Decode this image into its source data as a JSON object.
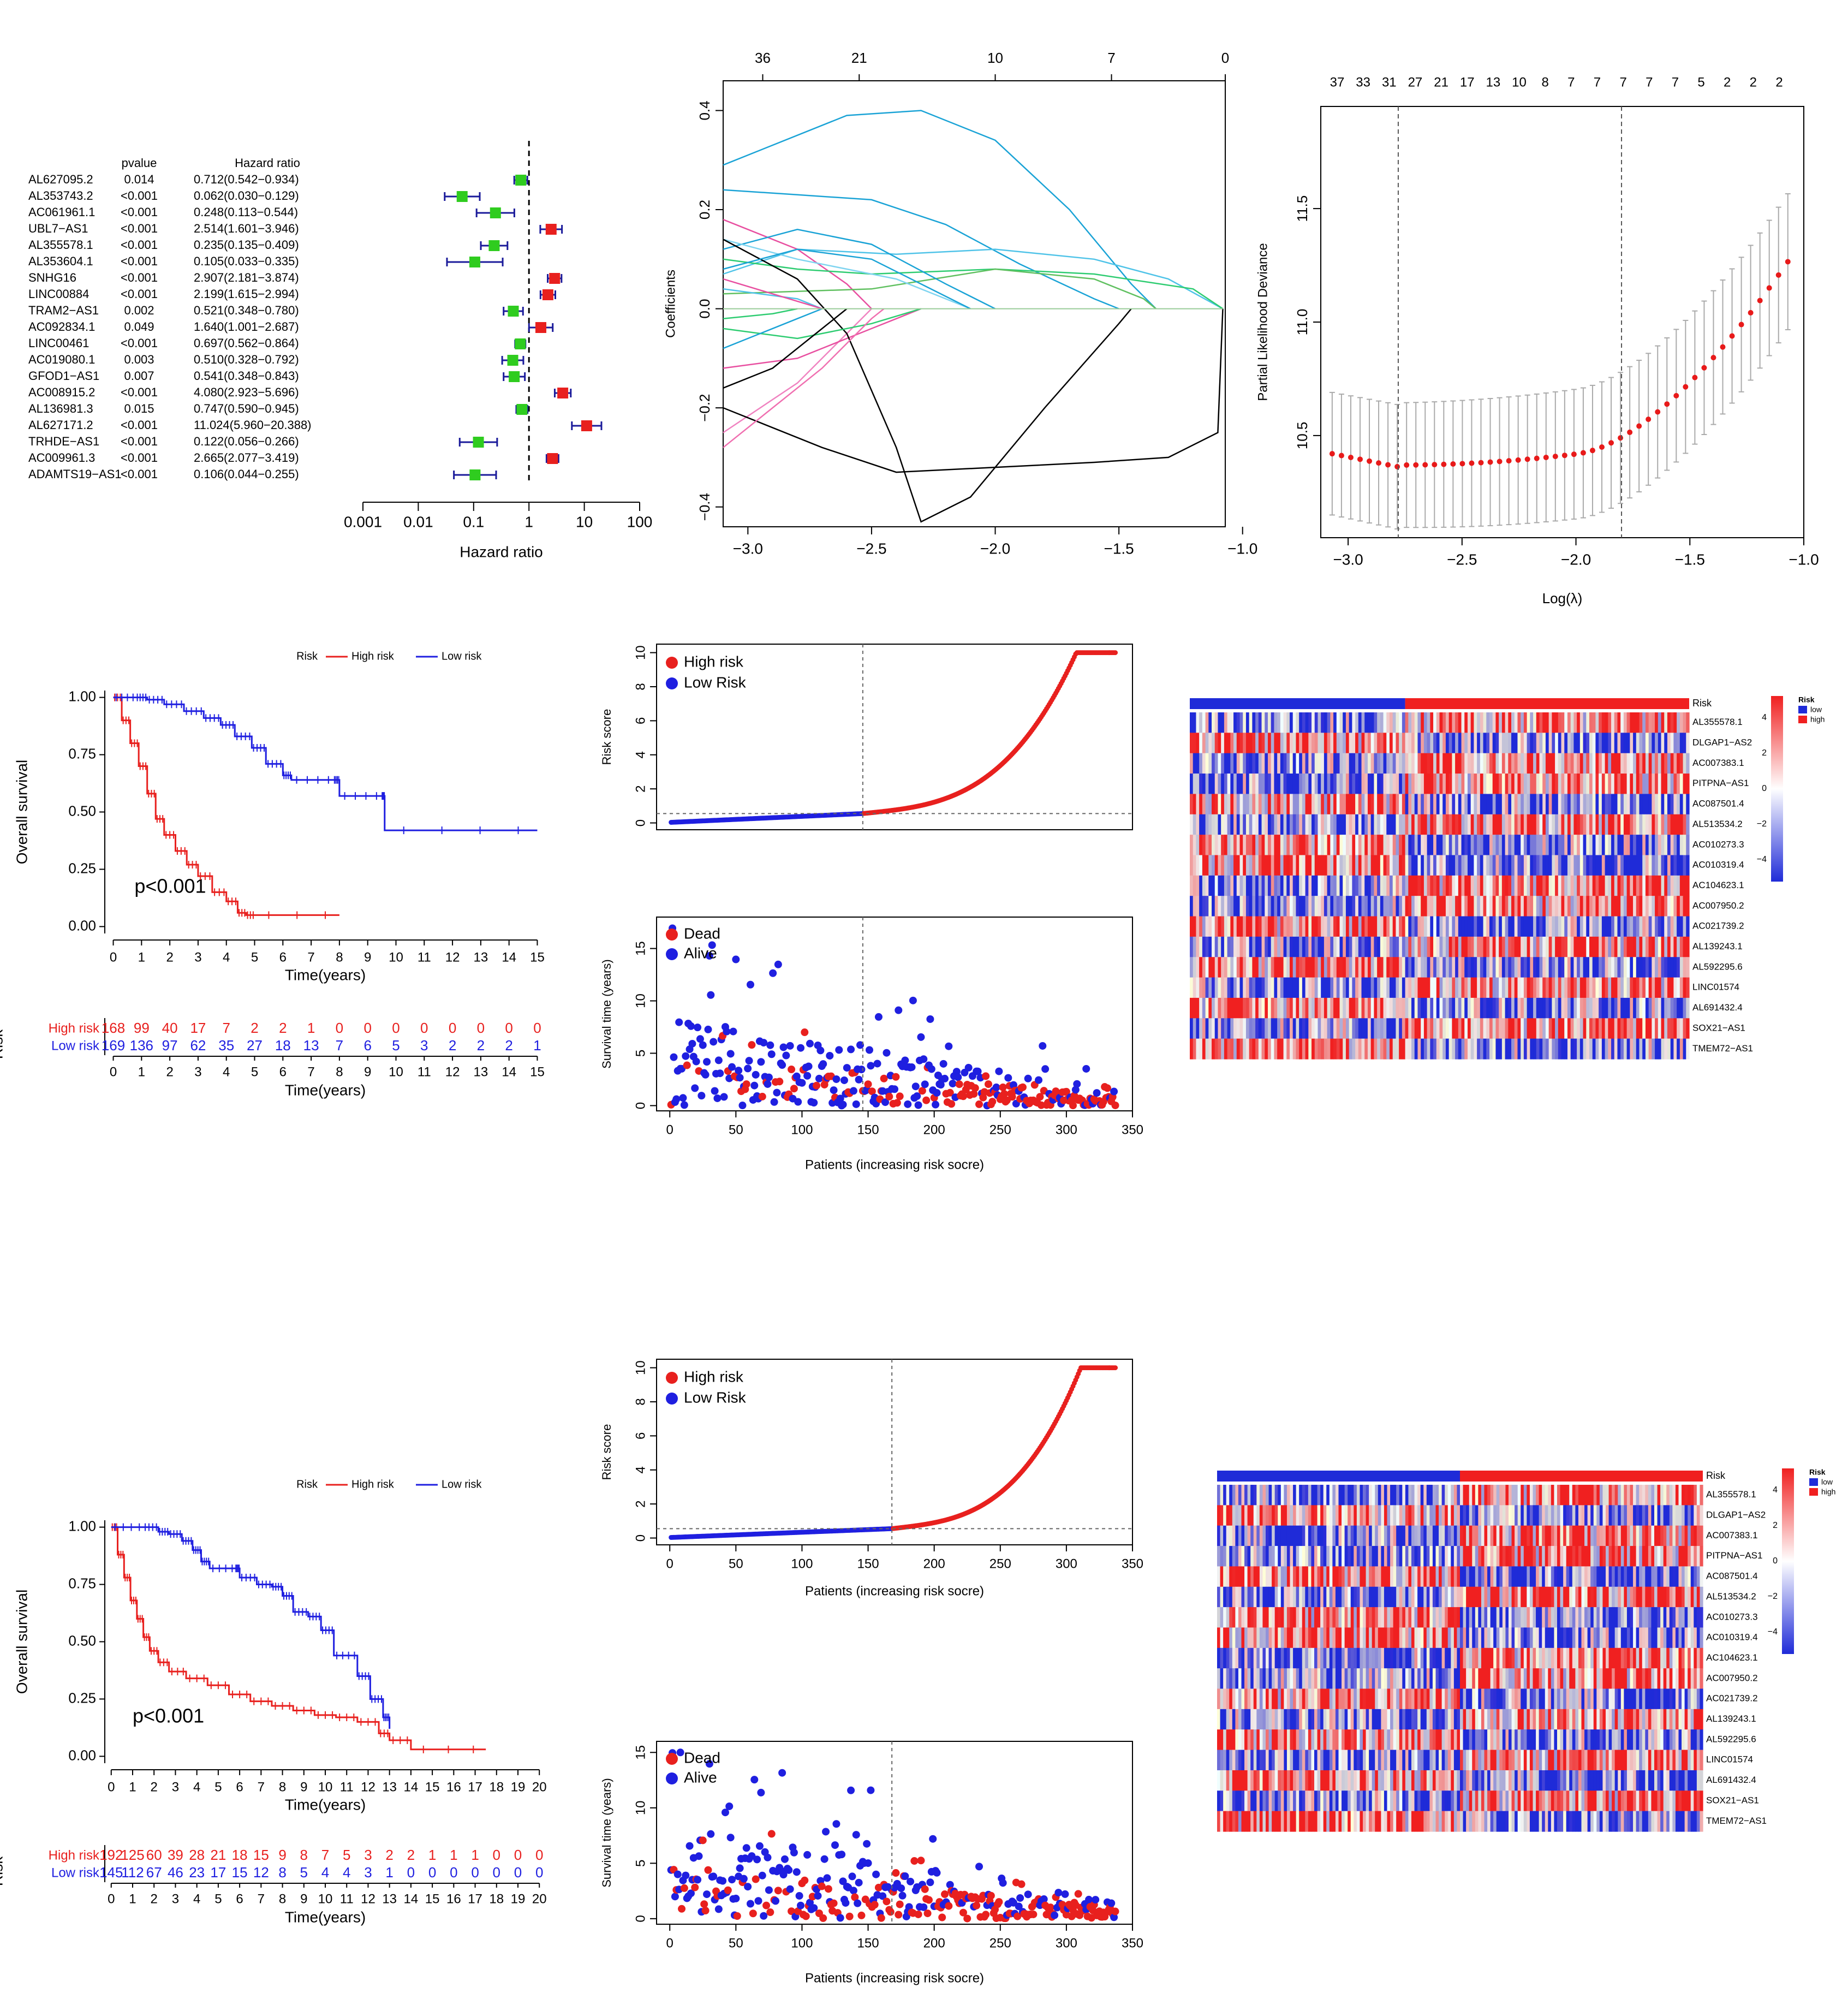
{
  "colors": {
    "high": "#e8201e",
    "low": "#1f1fe0",
    "green": "#2fcc1f",
    "cvBlue": "#1a1ae6",
    "cvRed": "#e81a1a",
    "hmHigh": "#f02020",
    "hmLow": "#1f2bd8",
    "hmMid": "#ffffff"
  },
  "panels": [
    "A",
    "B",
    "C",
    "D",
    "E",
    "F",
    "G",
    "H",
    "I"
  ],
  "chart_data": [
    {
      "id": "A",
      "type": "forest",
      "headers": {
        "pvalue": "pvalue",
        "hr": "Hazard ratio"
      },
      "xlabel": "Hazard ratio",
      "xscale": "log",
      "xticks": [
        "0.001",
        "0.01",
        "0.1",
        "1",
        "10",
        "100"
      ],
      "rows": [
        {
          "gene": "AL627095.2",
          "p": "0.014",
          "hrText": "0.712(0.542−0.934)",
          "hr": 0.712,
          "lo": 0.542,
          "hi": 0.934
        },
        {
          "gene": "AL353743.2",
          "p": "<0.001",
          "hrText": "0.062(0.030−0.129)",
          "hr": 0.062,
          "lo": 0.03,
          "hi": 0.129
        },
        {
          "gene": "AC061961.1",
          "p": "<0.001",
          "hrText": "0.248(0.113−0.544)",
          "hr": 0.248,
          "lo": 0.113,
          "hi": 0.544
        },
        {
          "gene": "UBL7−AS1",
          "p": "<0.001",
          "hrText": "2.514(1.601−3.946)",
          "hr": 2.514,
          "lo": 1.601,
          "hi": 3.946
        },
        {
          "gene": "AL355578.1",
          "p": "<0.001",
          "hrText": "0.235(0.135−0.409)",
          "hr": 0.235,
          "lo": 0.135,
          "hi": 0.409
        },
        {
          "gene": "AL353604.1",
          "p": "<0.001",
          "hrText": "0.105(0.033−0.335)",
          "hr": 0.105,
          "lo": 0.033,
          "hi": 0.335
        },
        {
          "gene": "SNHG16",
          "p": "<0.001",
          "hrText": "2.907(2.181−3.874)",
          "hr": 2.907,
          "lo": 2.181,
          "hi": 3.874
        },
        {
          "gene": "LINC00884",
          "p": "<0.001",
          "hrText": "2.199(1.615−2.994)",
          "hr": 2.199,
          "lo": 1.615,
          "hi": 2.994
        },
        {
          "gene": "TRAM2−AS1",
          "p": "0.002",
          "hrText": "0.521(0.348−0.780)",
          "hr": 0.521,
          "lo": 0.348,
          "hi": 0.78
        },
        {
          "gene": "AC092834.1",
          "p": "0.049",
          "hrText": "1.640(1.001−2.687)",
          "hr": 1.64,
          "lo": 1.001,
          "hi": 2.687
        },
        {
          "gene": "LINC00461",
          "p": "<0.001",
          "hrText": "0.697(0.562−0.864)",
          "hr": 0.697,
          "lo": 0.562,
          "hi": 0.864
        },
        {
          "gene": "AC019080.1",
          "p": "0.003",
          "hrText": "0.510(0.328−0.792)",
          "hr": 0.51,
          "lo": 0.328,
          "hi": 0.792
        },
        {
          "gene": "GFOD1−AS1",
          "p": "0.007",
          "hrText": "0.541(0.348−0.843)",
          "hr": 0.541,
          "lo": 0.348,
          "hi": 0.843
        },
        {
          "gene": "AC008915.2",
          "p": "<0.001",
          "hrText": "4.080(2.923−5.696)",
          "hr": 4.08,
          "lo": 2.923,
          "hi": 5.696
        },
        {
          "gene": "AL136981.3",
          "p": "0.015",
          "hrText": "0.747(0.590−0.945)",
          "hr": 0.747,
          "lo": 0.59,
          "hi": 0.945
        },
        {
          "gene": "AL627171.2",
          "p": "<0.001",
          "hrText": "11.024(5.960−20.388)",
          "hr": 11.024,
          "lo": 5.96,
          "hi": 20.388
        },
        {
          "gene": "TRHDE−AS1",
          "p": "<0.001",
          "hrText": "0.122(0.056−0.266)",
          "hr": 0.122,
          "lo": 0.056,
          "hi": 0.266
        },
        {
          "gene": "AC009961.3",
          "p": "<0.001",
          "hrText": "2.665(2.077−3.419)",
          "hr": 2.665,
          "lo": 2.077,
          "hi": 3.419
        },
        {
          "gene": "ADAMTS19−AS1",
          "p": "<0.001",
          "hrText": "0.106(0.044−0.255)",
          "hr": 0.106,
          "lo": 0.044,
          "hi": 0.255
        }
      ]
    },
    {
      "id": "B",
      "type": "line",
      "ylabel": "Coefficients",
      "xrange": [
        -3.1,
        -1.07
      ],
      "yrange": [
        -0.44,
        0.46
      ],
      "xticks": [
        "−3.0",
        "−2.5",
        "−2.0",
        "−1.5",
        "−1.0"
      ],
      "yticks": [
        "−0.4",
        "−0.2",
        "0.0",
        "0.2",
        "0.4"
      ],
      "topTicks": [
        "36",
        "21",
        "10",
        "7",
        "0"
      ],
      "topTickX": [
        -2.94,
        -2.55,
        -2.0,
        -1.53,
        -1.07
      ]
    },
    {
      "id": "C",
      "type": "scatter",
      "xlabel": "Log(λ)",
      "ylabel": "Partial Likelihood Deviance",
      "xrange": [
        -3.12,
        -1.0
      ],
      "yrange": [
        10.05,
        11.95
      ],
      "xticks": [
        "−3.0",
        "−2.5",
        "−2.0",
        "−1.5",
        "−1.0"
      ],
      "yticks": [
        "10.5",
        "11.0",
        "11.5"
      ],
      "topTicks": [
        "37",
        "33",
        "31",
        "27",
        "21",
        "17",
        "13",
        "10",
        "8",
        "7",
        "7",
        "7",
        "7",
        "7",
        "5",
        "2",
        "2",
        "2"
      ],
      "vlines": [
        -2.78,
        -1.8
      ]
    },
    {
      "id": "D",
      "type": "survival",
      "legend": {
        "title": "Risk",
        "high": "High risk",
        "low": "Low risk"
      },
      "ylabel": "Overall survival",
      "xlabel": "Time(years)",
      "yticks": [
        "0.00",
        "0.25",
        "0.50",
        "0.75",
        "1.00"
      ],
      "xmax": 15,
      "pvalue": "p<0.001",
      "table": {
        "ylabel": "Risk",
        "xlabel": "Time(years)",
        "highLabel": "High risk",
        "lowLabel": "Low risk",
        "high": [
          "168",
          "99",
          "40",
          "17",
          "7",
          "2",
          "2",
          "1",
          "0",
          "0",
          "0",
          "0",
          "0",
          "0",
          "0",
          "0"
        ],
        "low": [
          "169",
          "136",
          "97",
          "62",
          "35",
          "27",
          "18",
          "13",
          "7",
          "6",
          "5",
          "3",
          "2",
          "2",
          "2",
          "1"
        ]
      },
      "high": [
        [
          0,
          1
        ],
        [
          0.3,
          0.9
        ],
        [
          0.6,
          0.8
        ],
        [
          0.9,
          0.7
        ],
        [
          1.2,
          0.58
        ],
        [
          1.5,
          0.47
        ],
        [
          1.8,
          0.4
        ],
        [
          2.2,
          0.33
        ],
        [
          2.6,
          0.27
        ],
        [
          3,
          0.22
        ],
        [
          3.5,
          0.15
        ],
        [
          4,
          0.11
        ],
        [
          4.4,
          0.06
        ],
        [
          4.7,
          0.05
        ],
        [
          5,
          0.05
        ],
        [
          8,
          0.05
        ]
      ],
      "low": [
        [
          0,
          1
        ],
        [
          0.8,
          1
        ],
        [
          1.2,
          0.99
        ],
        [
          1.8,
          0.97
        ],
        [
          2.5,
          0.94
        ],
        [
          3.2,
          0.91
        ],
        [
          3.8,
          0.88
        ],
        [
          4.3,
          0.83
        ],
        [
          4.9,
          0.78
        ],
        [
          5.4,
          0.71
        ],
        [
          6,
          0.66
        ],
        [
          6.3,
          0.64
        ],
        [
          7.8,
          0.64
        ],
        [
          8,
          0.57
        ],
        [
          9.5,
          0.57
        ],
        [
          9.6,
          0.42
        ],
        [
          15,
          0.42
        ]
      ]
    },
    {
      "id": "E",
      "type": "scatter",
      "risk": {
        "ylabel": "Risk score",
        "legendHigh": "High risk",
        "legendLow": "Low Risk",
        "xrange": [
          -10,
          350
        ],
        "yrange": [
          -0.4,
          10.5
        ],
        "yticks": [
          "0",
          "2",
          "4",
          "6",
          "8",
          "10"
        ],
        "n": 337,
        "cut": 146,
        "cutY": 0.55
      },
      "surv": {
        "ylabel": "Survival time (years)",
        "xlabel": "Patients (increasing risk socre)",
        "legendDead": "Dead",
        "legendAlive": "Alive",
        "xrange": [
          -10,
          350
        ],
        "yrange": [
          -0.5,
          18
        ],
        "yticks": [
          "0",
          "5",
          "10",
          "15"
        ],
        "xticks": [
          "0",
          "50",
          "100",
          "150",
          "200",
          "250",
          "300",
          "350"
        ]
      }
    },
    {
      "id": "F",
      "type": "heatmap",
      "genes": [
        "AL355578.1",
        "DLGAP1−AS2",
        "AC007383.1",
        "PITPNA−AS1",
        "AC087501.4",
        "AL513534.2",
        "AC010273.3",
        "AC010319.4",
        "AC104623.1",
        "AC007950.2",
        "AC021739.2",
        "AL139243.1",
        "AL592295.6",
        "LINC01574",
        "AL691432.4",
        "SOX21−AS1",
        "TMEM72−AS1"
      ],
      "annotation": "Risk",
      "legendTitle": "Risk",
      "legendLow": "low",
      "legendHigh": "high",
      "scaleTicks": [
        "4",
        "2",
        "0",
        "−2",
        "−4"
      ],
      "lowFraction": 0.43
    },
    {
      "id": "G",
      "type": "survival",
      "legend": {
        "title": "Risk",
        "high": "High risk",
        "low": "Low risk"
      },
      "ylabel": "Overall survival",
      "xlabel": "Time(years)",
      "yticks": [
        "0.00",
        "0.25",
        "0.50",
        "0.75",
        "1.00"
      ],
      "xmax": 20,
      "pvalue": "p<0.001",
      "table": {
        "ylabel": "Risk",
        "xlabel": "Time(years)",
        "highLabel": "High risk",
        "lowLabel": "Low risk",
        "high": [
          "192",
          "125",
          "60",
          "39",
          "28",
          "21",
          "18",
          "15",
          "9",
          "8",
          "7",
          "5",
          "3",
          "2",
          "2",
          "1",
          "1",
          "1",
          "0",
          "0",
          "0"
        ],
        "low": [
          "145",
          "112",
          "67",
          "46",
          "23",
          "17",
          "15",
          "12",
          "8",
          "5",
          "4",
          "4",
          "3",
          "1",
          "0",
          "0",
          "0",
          "0",
          "0",
          "0",
          "0"
        ]
      },
      "high": [
        [
          0,
          1
        ],
        [
          0.3,
          0.88
        ],
        [
          0.6,
          0.78
        ],
        [
          0.9,
          0.68
        ],
        [
          1.2,
          0.6
        ],
        [
          1.5,
          0.52
        ],
        [
          1.8,
          0.46
        ],
        [
          2.2,
          0.41
        ],
        [
          2.7,
          0.37
        ],
        [
          3.5,
          0.34
        ],
        [
          4.5,
          0.31
        ],
        [
          5.5,
          0.27
        ],
        [
          6.5,
          0.24
        ],
        [
          7.5,
          0.22
        ],
        [
          8.5,
          0.2
        ],
        [
          9.5,
          0.18
        ],
        [
          10.5,
          0.17
        ],
        [
          11.5,
          0.15
        ],
        [
          12.5,
          0.1
        ],
        [
          13,
          0.07
        ],
        [
          14,
          0.03
        ],
        [
          17.5,
          0.03
        ]
      ],
      "low": [
        [
          0,
          1
        ],
        [
          1.5,
          1
        ],
        [
          2.2,
          0.98
        ],
        [
          2.7,
          0.97
        ],
        [
          3.3,
          0.94
        ],
        [
          3.8,
          0.9
        ],
        [
          4.2,
          0.85
        ],
        [
          4.6,
          0.82
        ],
        [
          5.8,
          0.82
        ],
        [
          6,
          0.78
        ],
        [
          6.8,
          0.75
        ],
        [
          7.5,
          0.74
        ],
        [
          8,
          0.7
        ],
        [
          8.5,
          0.63
        ],
        [
          9.2,
          0.61
        ],
        [
          9.8,
          0.55
        ],
        [
          10.4,
          0.44
        ],
        [
          11.5,
          0.35
        ],
        [
          12.1,
          0.25
        ],
        [
          12.7,
          0.17
        ],
        [
          13,
          0.12
        ]
      ]
    },
    {
      "id": "H",
      "type": "scatter",
      "risk": {
        "ylabel": "Risk score",
        "xlabel": "Patients (increasing risk socre)",
        "legendHigh": "High risk",
        "legendLow": "Low Risk",
        "xrange": [
          -10,
          350
        ],
        "yrange": [
          -0.4,
          10.5
        ],
        "yticks": [
          "0",
          "2",
          "4",
          "6",
          "8",
          "10"
        ],
        "xticks": [
          "0",
          "50",
          "100",
          "150",
          "200",
          "250",
          "300",
          "350"
        ],
        "n": 337,
        "cut": 168,
        "cutY": 0.55
      },
      "surv": {
        "ylabel": "Survival time (years)",
        "xlabel": "Patients (increasing risk socre)",
        "legendDead": "Dead",
        "legendAlive": "Alive",
        "xrange": [
          -10,
          350
        ],
        "yrange": [
          -0.5,
          16
        ],
        "yticks": [
          "0",
          "5",
          "10",
          "15"
        ],
        "xticks": [
          "0",
          "50",
          "100",
          "150",
          "200",
          "250",
          "300",
          "350"
        ]
      }
    },
    {
      "id": "I",
      "type": "heatmap",
      "genes": [
        "AL355578.1",
        "DLGAP1−AS2",
        "AC007383.1",
        "PITPNA−AS1",
        "AC087501.4",
        "AL513534.2",
        "AC010273.3",
        "AC010319.4",
        "AC104623.1",
        "AC007950.2",
        "AC021739.2",
        "AL139243.1",
        "AL592295.6",
        "LINC01574",
        "AL691432.4",
        "SOX21−AS1",
        "TMEM72−AS1"
      ],
      "annotation": "Risk",
      "legendTitle": "Risk",
      "legendLow": "low",
      "legendHigh": "high",
      "scaleTicks": [
        "4",
        "2",
        "0",
        "−2",
        "−4"
      ],
      "lowFraction": 0.5
    }
  ]
}
